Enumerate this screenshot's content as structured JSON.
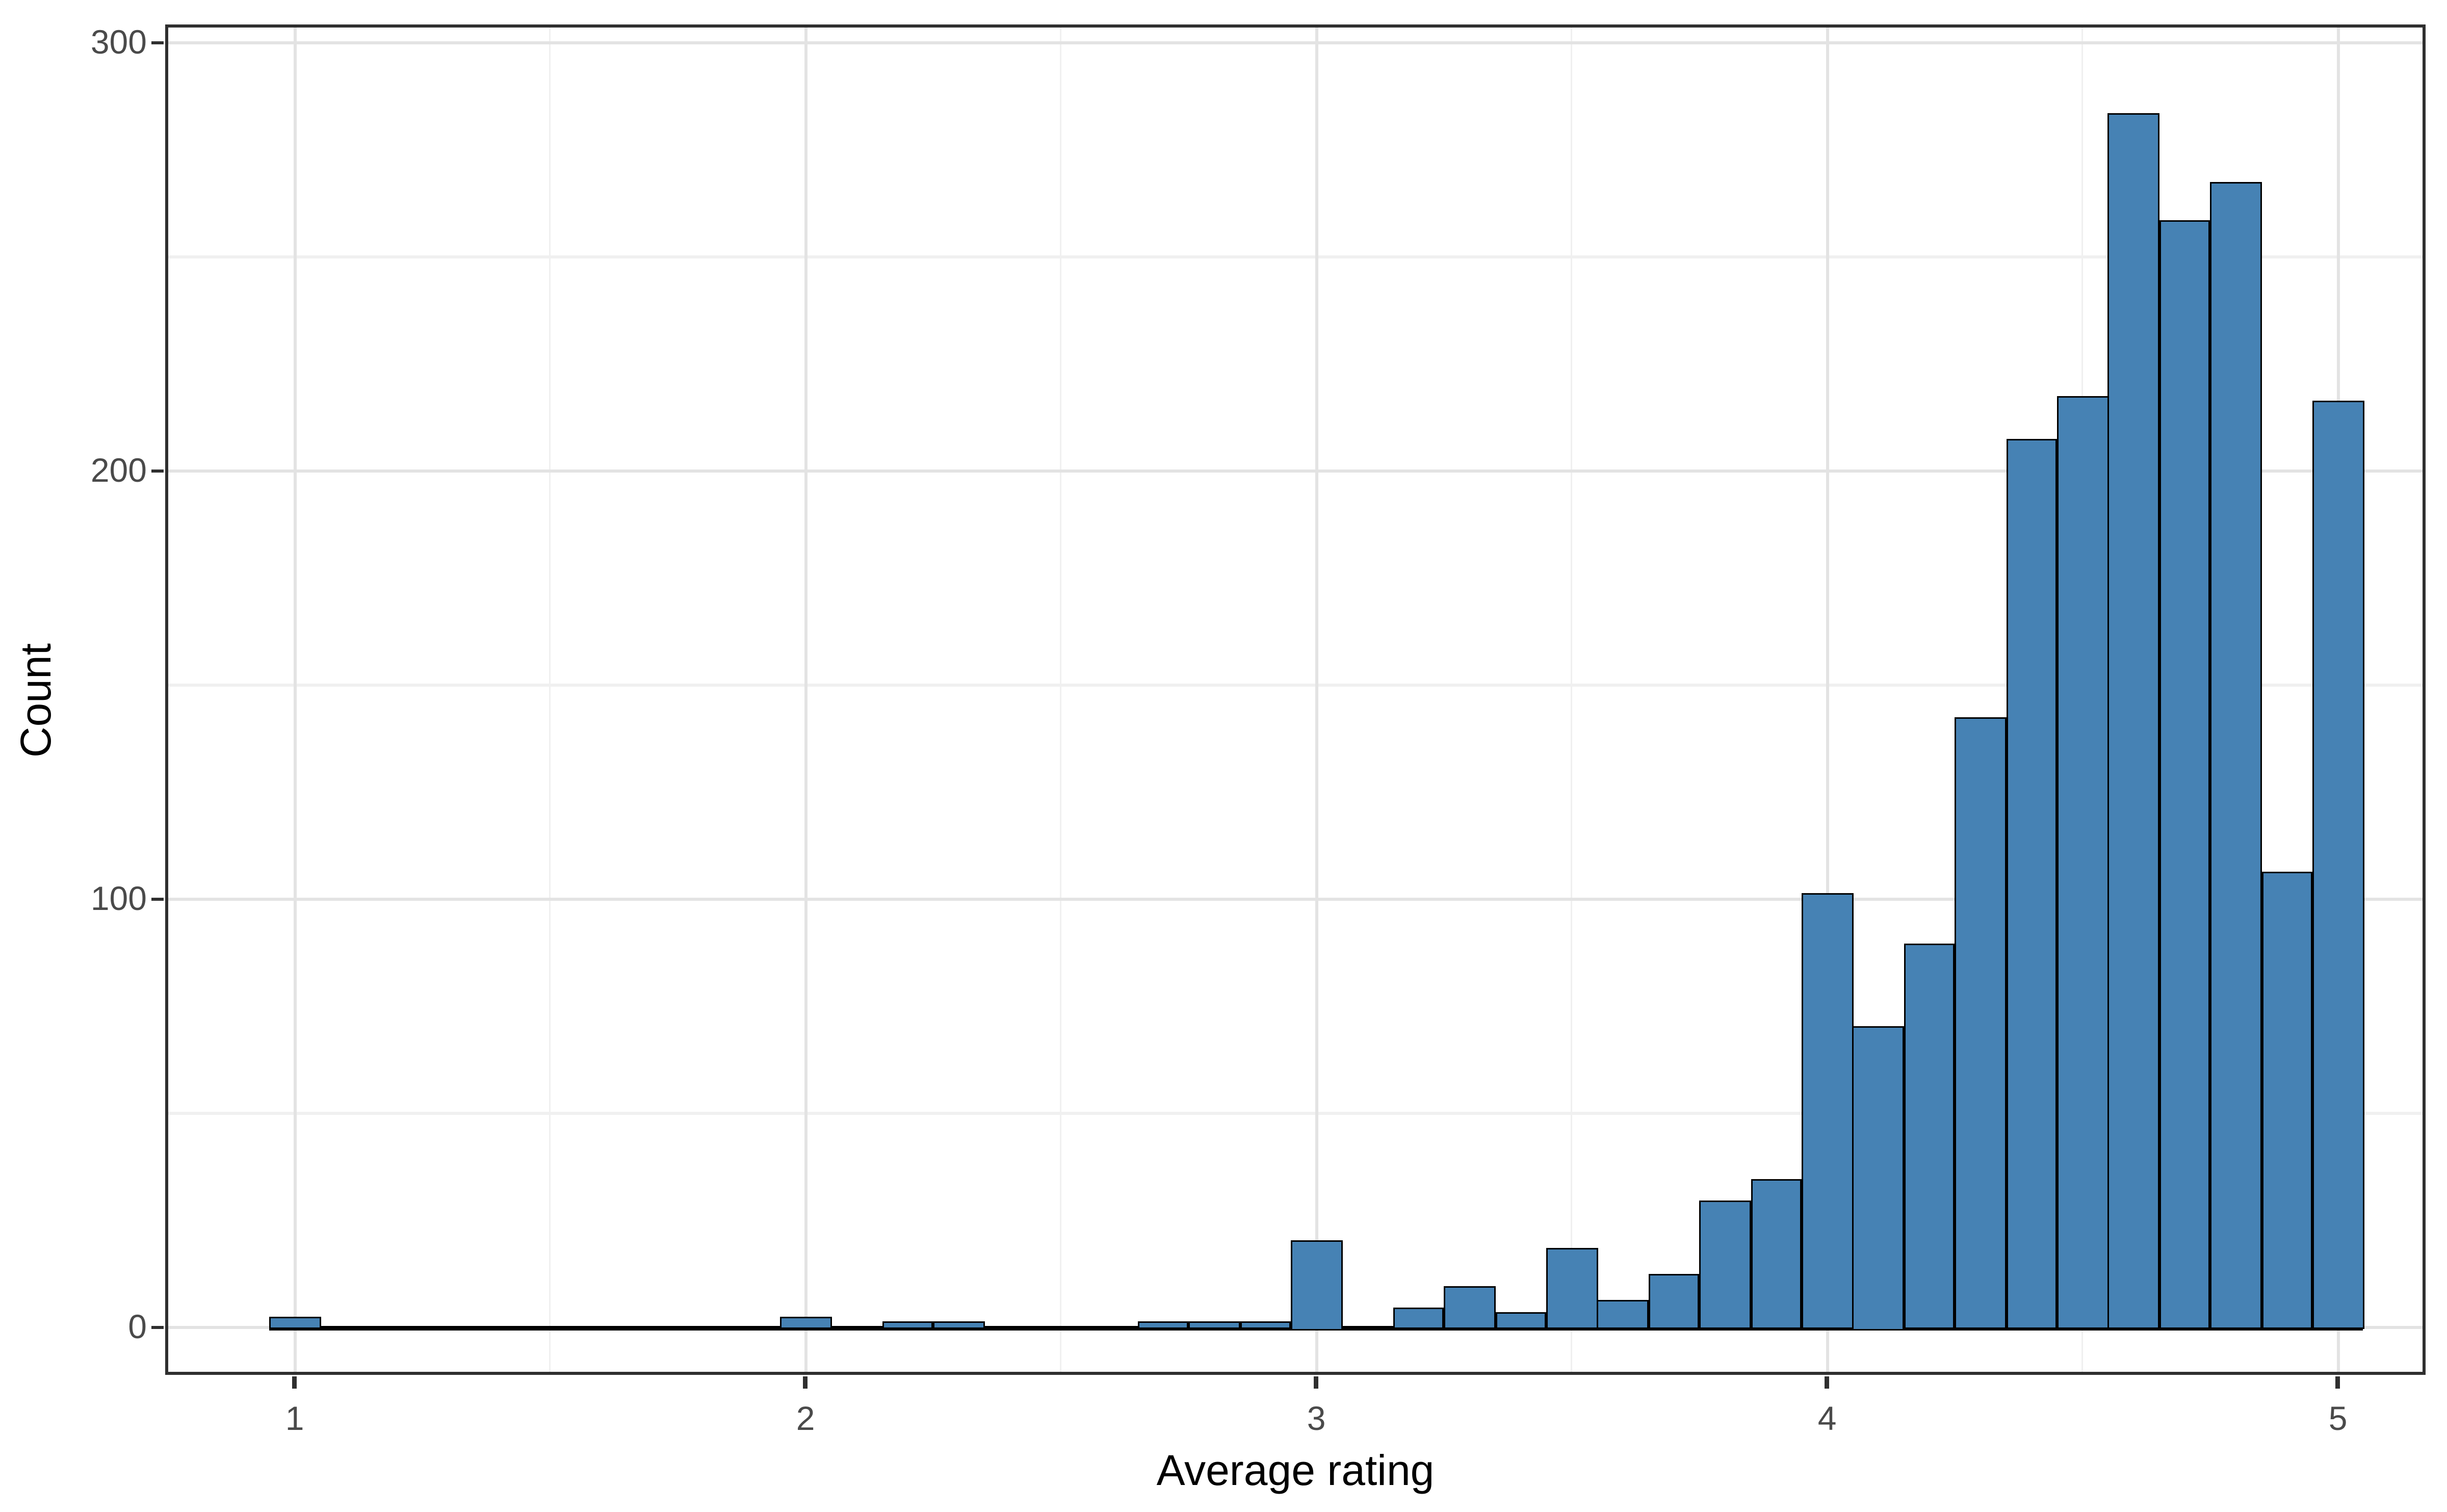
{
  "chart_data": {
    "type": "bar",
    "subtype": "histogram",
    "title": "",
    "xlabel": "Average rating",
    "ylabel": "Count",
    "x_tick_labels": [
      "1",
      "2",
      "3",
      "4",
      "5"
    ],
    "x_tick_values": [
      1,
      2,
      3,
      4,
      5
    ],
    "x_minor_gridlines": [
      1.5,
      2.5,
      3.5,
      4.5
    ],
    "y_tick_labels": [
      "0",
      "100",
      "200",
      "300"
    ],
    "y_tick_values": [
      0,
      100,
      200,
      300
    ],
    "y_minor_gridlines": [
      50,
      150,
      250
    ],
    "xlim": [
      0.95,
      5.05
    ],
    "ylim": [
      0,
      300
    ],
    "binwidth": 0.1,
    "grid": "major and minor, light gray on white",
    "legend": "none",
    "bins": {
      "centers": [
        1.0,
        1.1,
        1.2,
        1.3,
        1.4,
        1.5,
        1.6,
        1.7,
        1.8,
        1.9,
        2.0,
        2.1,
        2.2,
        2.3,
        2.4,
        2.5,
        2.6,
        2.7,
        2.8,
        2.9,
        3.0,
        3.1,
        3.2,
        3.3,
        3.4,
        3.5,
        3.6,
        3.7,
        3.8,
        3.9,
        4.0,
        4.1,
        4.2,
        4.3,
        4.4,
        4.5,
        4.6,
        4.7,
        4.8,
        4.9,
        5.0
      ],
      "counts": [
        2,
        0,
        0,
        0,
        0,
        0,
        0,
        0,
        0,
        0,
        2,
        0,
        1,
        1,
        0,
        0,
        0,
        1,
        1,
        1,
        20,
        0,
        4,
        9,
        3,
        18,
        6,
        12,
        29,
        34,
        101,
        70,
        89,
        142,
        207,
        217,
        283,
        258,
        267,
        106,
        216
      ]
    },
    "colors": {
      "bar_fill": "#4682B4",
      "bar_stroke": "#000000",
      "panel_border": "#2F2F2F",
      "grid_major": "#E3E3E3",
      "grid_minor": "#F0F0F0",
      "tick_mark": "#2F2F2F",
      "tick_text": "#4A4A4A",
      "axis_title_color": "#000000",
      "background": "#FFFFFF"
    }
  }
}
